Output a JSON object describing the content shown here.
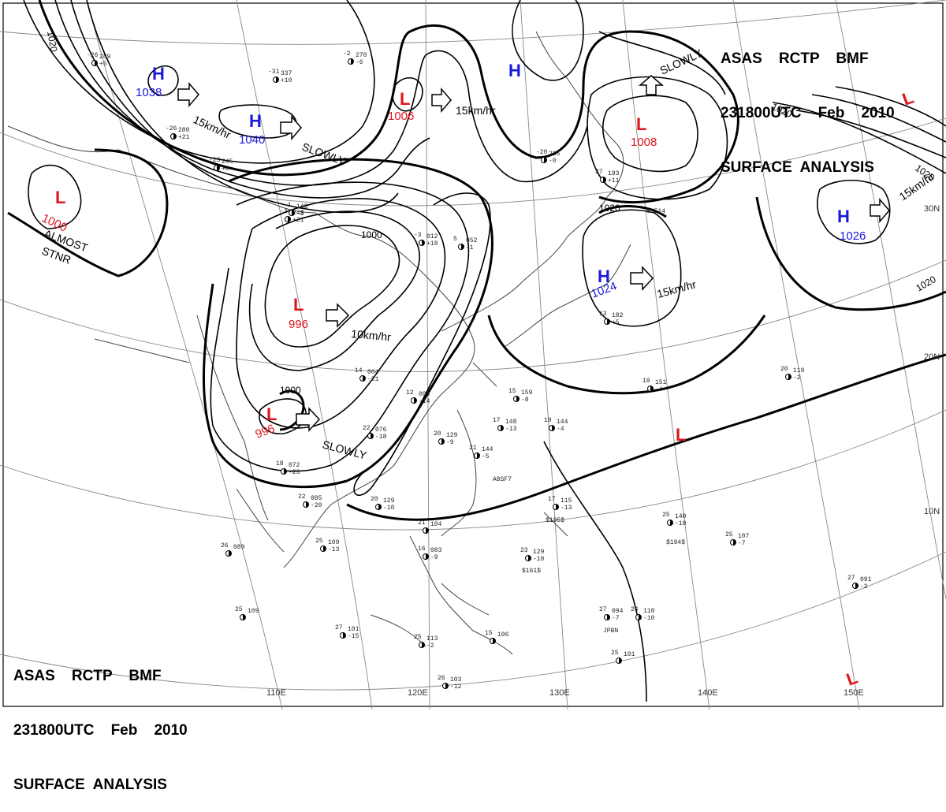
{
  "header": {
    "line1": "ASAS    RCTP    BMF",
    "line2": "231800UTC    Feb    2010",
    "line3": "SURFACE  ANALYSIS"
  },
  "pressure_systems": [
    {
      "kind": "H",
      "value": "1038"
    },
    {
      "kind": "H",
      "value": "1040"
    },
    {
      "kind": "L",
      "value": "1000"
    },
    {
      "kind": "L",
      "value": "1006"
    },
    {
      "kind": "H",
      "value": ""
    },
    {
      "kind": "L",
      "value": "1008"
    },
    {
      "kind": "H",
      "value": "1026"
    },
    {
      "kind": "L",
      "value": "996"
    },
    {
      "kind": "H",
      "value": "1024"
    },
    {
      "kind": "L",
      "value": "996"
    },
    {
      "kind": "L",
      "value": ""
    },
    {
      "kind": "L",
      "value": ""
    },
    {
      "kind": "L",
      "value": ""
    }
  ],
  "motion_labels": [
    "15km/hr",
    "SLOWLY",
    "15km/hr",
    "SLOWLY",
    "15km/hr",
    "10km/hr",
    "15km/hr",
    "SLOWLY",
    "ALMOST",
    "STNR"
  ],
  "isobar_labels": [
    "1020",
    "1000",
    "1000",
    "1020",
    "1020",
    "1020",
    "1020"
  ],
  "lon_labels": [
    "110E",
    "120E",
    "130E",
    "140E",
    "150E"
  ],
  "lat_labels": [
    "30N",
    "20N",
    "10N"
  ],
  "stations": [
    {
      "t": "-31",
      "p": "337",
      "d": "+10"
    },
    {
      "t": "-26",
      "p": "289",
      "d": "+5"
    },
    {
      "t": "-26",
      "p": "280",
      "d": "+21"
    },
    {
      "t": "-2",
      "p": "270",
      "d": "-6"
    },
    {
      "t": "-23",
      "p": "245",
      "d": "+8"
    },
    {
      "t": "-2",
      "p": "243",
      "d": "+21"
    },
    {
      "t": "-1",
      "p": "143",
      "d": "-8"
    },
    {
      "t": "-3",
      "p": "012",
      "d": "+18"
    },
    {
      "t": "5",
      "p": "052",
      "d": "-1"
    },
    {
      "t": "-20",
      "p": "215",
      "d": "-0"
    },
    {
      "t": "27",
      "p": "193",
      "d": "+11"
    },
    {
      "t": "13",
      "p": "182",
      "d": "+5"
    },
    {
      "t": "19",
      "p": "151",
      "d": "-4"
    },
    {
      "t": "20",
      "p": "119",
      "d": "-2"
    },
    {
      "t": "14",
      "p": "004",
      "d": "-21"
    },
    {
      "t": "12",
      "p": "004",
      "d": "-14"
    },
    {
      "t": "22",
      "p": "076",
      "d": "-18"
    },
    {
      "t": "18",
      "p": "072",
      "d": "-23"
    },
    {
      "t": "20",
      "p": "129",
      "d": "-9"
    },
    {
      "t": "21",
      "p": "144",
      "d": "-5"
    },
    {
      "t": "15",
      "p": "159",
      "d": "-8"
    },
    {
      "t": "17",
      "p": "148",
      "d": "-13"
    },
    {
      "t": "19",
      "p": "144",
      "d": "-4"
    },
    {
      "t": "22",
      "p": "085",
      "d": "-20"
    },
    {
      "t": "20",
      "p": "129",
      "d": "-10"
    },
    {
      "t": "25",
      "p": "109",
      "d": "-13"
    },
    {
      "t": "26",
      "p": "089",
      "d": ""
    },
    {
      "t": "25",
      "p": "109",
      "d": ""
    },
    {
      "t": "21",
      "p": "104",
      "d": ""
    },
    {
      "t": "16",
      "p": "083",
      "d": "-9"
    },
    {
      "t": "23",
      "p": "129",
      "d": "-10"
    },
    {
      "t": "25",
      "p": "140",
      "d": "-10"
    },
    {
      "t": "25",
      "p": "107",
      "d": "-7"
    },
    {
      "t": "27",
      "p": "091",
      "d": "-2"
    },
    {
      "t": "27",
      "p": "094",
      "d": "-7"
    },
    {
      "t": "24",
      "p": "110",
      "d": "-10"
    },
    {
      "t": "27",
      "p": "101",
      "d": "-15"
    },
    {
      "t": "25",
      "p": "113",
      "d": "-2"
    },
    {
      "t": "26",
      "p": "103",
      "d": "-12"
    },
    {
      "t": "25",
      "p": "101",
      "d": ""
    },
    {
      "t": "15",
      "p": "106",
      "d": ""
    },
    {
      "t": "17",
      "p": "115",
      "d": "-13"
    }
  ],
  "extra_text": [
    "A8SF7",
    "$195$",
    "$161$",
    "$194$",
    "JPBN",
    "6S514"
  ]
}
